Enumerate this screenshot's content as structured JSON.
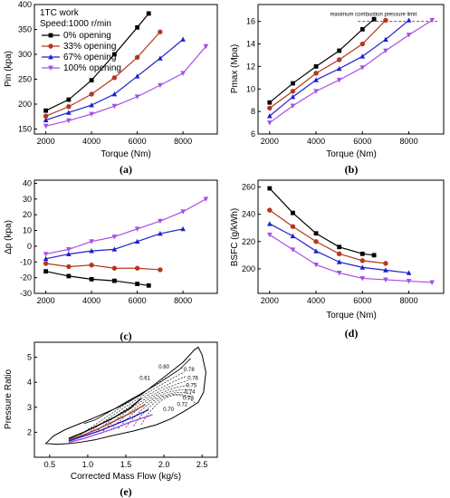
{
  "colors": {
    "s0": "#000000",
    "s33": "#b5371d",
    "s67": "#1f1fcf",
    "s100": "#a64fe8",
    "limit": "#c0392b"
  },
  "panel_a": {
    "caption": "(a)",
    "legend_header": [
      "1TC work",
      "Speed:1000 r/min"
    ],
    "chart_data": {
      "type": "line",
      "xlabel": "Torque (Nm)",
      "ylabel": "Pin (kpa)",
      "xlim": [
        1500,
        9500
      ],
      "ylim": [
        140,
        400
      ],
      "xticks": [
        2000,
        4000,
        6000,
        8000
      ],
      "yticks": [
        150,
        200,
        250,
        300,
        350,
        400
      ],
      "series": [
        {
          "name": "0% opening",
          "x": [
            2000,
            3000,
            4000,
            5000,
            6000,
            6500
          ],
          "y": [
            187,
            209,
            248,
            300,
            354,
            382
          ]
        },
        {
          "name": "33% opening",
          "x": [
            2000,
            3000,
            4000,
            5000,
            6000,
            7000
          ],
          "y": [
            176,
            195,
            220,
            253,
            294,
            345
          ]
        },
        {
          "name": "67% opening",
          "x": [
            2000,
            3000,
            4000,
            5000,
            6000,
            7000,
            8000
          ],
          "y": [
            168,
            183,
            198,
            220,
            256,
            292,
            330
          ]
        },
        {
          "name": "100% opening",
          "x": [
            2000,
            3000,
            4000,
            5000,
            6000,
            7000,
            8000,
            9000
          ],
          "y": [
            156,
            167,
            180,
            196,
            215,
            238,
            262,
            316
          ]
        }
      ]
    }
  },
  "panel_b": {
    "caption": "(b)",
    "annotation": "maximum combustion pressure limit",
    "chart_data": {
      "type": "line",
      "xlabel": "Torque (Nm)",
      "ylabel": "Pmax (Mpa)",
      "xlim": [
        1500,
        9500
      ],
      "ylim": [
        6,
        17.5
      ],
      "xticks": [
        2000,
        4000,
        6000,
        8000
      ],
      "yticks": [
        6,
        8,
        10,
        12,
        14,
        16
      ],
      "limit_y": 16,
      "series": [
        {
          "name": "0% opening",
          "x": [
            2000,
            3000,
            4000,
            5000,
            6000,
            6500
          ],
          "y": [
            8.8,
            10.5,
            12.0,
            13.4,
            15.3,
            16.2
          ]
        },
        {
          "name": "33% opening",
          "x": [
            2000,
            3000,
            4000,
            5000,
            6000,
            7000
          ],
          "y": [
            8.3,
            9.8,
            11.4,
            12.6,
            14.0,
            16.1
          ]
        },
        {
          "name": "67% opening",
          "x": [
            2000,
            3000,
            4000,
            5000,
            6000,
            7000,
            8000
          ],
          "y": [
            7.6,
            9.3,
            10.8,
            11.8,
            12.9,
            14.4,
            16.1
          ]
        },
        {
          "name": "100% opening",
          "x": [
            2000,
            3000,
            4000,
            5000,
            6000,
            7000,
            8000,
            9000
          ],
          "y": [
            7.0,
            8.5,
            9.8,
            10.8,
            11.9,
            13.4,
            14.8,
            16.1
          ]
        }
      ]
    }
  },
  "panel_c": {
    "caption": "(c)",
    "chart_data": {
      "type": "line",
      "xlabel": "Torque (Nm)",
      "ylabel": "Δp (kpa)",
      "xlim": [
        1500,
        9500
      ],
      "ylim": [
        -30,
        42
      ],
      "xticks": [
        2000,
        4000,
        6000,
        8000
      ],
      "yticks": [
        -30,
        -20,
        -10,
        0,
        10,
        20,
        30,
        40
      ],
      "series": [
        {
          "name": "0% opening",
          "x": [
            2000,
            3000,
            4000,
            5000,
            6000,
            6500
          ],
          "y": [
            -16,
            -19,
            -21,
            -22,
            -24,
            -25
          ]
        },
        {
          "name": "33% opening",
          "x": [
            2000,
            3000,
            4000,
            5000,
            6000,
            7000
          ],
          "y": [
            -11,
            -13,
            -12,
            -14,
            -14,
            -15
          ]
        },
        {
          "name": "67% opening",
          "x": [
            2000,
            3000,
            4000,
            5000,
            6000,
            7000,
            8000
          ],
          "y": [
            -8,
            -5,
            -3,
            -2,
            3,
            8,
            11
          ]
        },
        {
          "name": "100% opening",
          "x": [
            2000,
            3000,
            4000,
            5000,
            6000,
            7000,
            8000,
            9000
          ],
          "y": [
            -5,
            -2,
            3,
            6,
            11,
            16,
            22,
            30
          ]
        }
      ]
    }
  },
  "panel_d": {
    "caption": "(d)",
    "chart_data": {
      "type": "line",
      "xlabel": "Torque (Nm)",
      "ylabel": "BSFC (g/kWh)",
      "xlim": [
        1500,
        9500
      ],
      "ylim": [
        182,
        265
      ],
      "xticks": [
        2000,
        4000,
        6000,
        8000
      ],
      "yticks": [
        200,
        220,
        240,
        260
      ],
      "series": [
        {
          "name": "0% opening",
          "x": [
            2000,
            3000,
            4000,
            5000,
            6000,
            6500
          ],
          "y": [
            259,
            241,
            226,
            216,
            211,
            210
          ]
        },
        {
          "name": "33% opening",
          "x": [
            2000,
            3000,
            4000,
            5000,
            6000,
            7000
          ],
          "y": [
            243,
            231,
            220,
            211,
            206,
            204
          ]
        },
        {
          "name": "67% opening",
          "x": [
            2000,
            3000,
            4000,
            5000,
            6000,
            7000,
            8000
          ],
          "y": [
            233,
            224,
            213,
            205,
            201,
            199,
            197
          ]
        },
        {
          "name": "100% opening",
          "x": [
            2000,
            3000,
            4000,
            5000,
            6000,
            7000,
            8000,
            9000
          ],
          "y": [
            225,
            214,
            203,
            197,
            193,
            192,
            191,
            190
          ]
        }
      ]
    }
  },
  "panel_e": {
    "caption": "(e)",
    "chart_data": {
      "type": "line",
      "xlabel": "Corrected Mass Flow (kg/s)",
      "ylabel": "Pressure Ratio",
      "xlim": [
        0.3,
        2.7
      ],
      "ylim": [
        1,
        5.6
      ],
      "xticks": [
        0.5,
        1.0,
        1.5,
        2.0,
        2.5
      ],
      "xticklabels": [
        "0.5",
        "1.0",
        "1.5",
        "2.0",
        "2.5"
      ],
      "yticks": [
        2,
        3,
        4,
        5
      ],
      "efficiency_labels": [
        "0.80",
        "0.78",
        "0.61",
        "0.76",
        "0.75",
        "0.74",
        "0.73",
        "0.72",
        "0.70"
      ],
      "map_outline": {
        "x": [
          0.45,
          0.55,
          0.7,
          0.9,
          1.1,
          1.4,
          1.7,
          2.0,
          2.25,
          2.4,
          2.45,
          2.5,
          2.55,
          2.52,
          2.45,
          2.3,
          2.1,
          1.9,
          1.6,
          1.3,
          1.1,
          0.9,
          0.75,
          0.6,
          0.45
        ],
        "y": [
          1.55,
          1.85,
          2.1,
          2.35,
          2.6,
          3.0,
          3.5,
          4.2,
          4.8,
          5.3,
          5.4,
          5.1,
          4.4,
          3.6,
          3.2,
          2.9,
          2.55,
          2.3,
          2.05,
          1.85,
          1.7,
          1.6,
          1.55,
          1.52,
          1.55
        ]
      },
      "operating_lines": [
        {
          "name": "0% opening",
          "x": [
            0.75,
            0.95,
            1.15,
            1.35,
            1.55,
            1.7
          ],
          "y": [
            1.75,
            2.0,
            2.3,
            2.6,
            2.95,
            3.35
          ]
        },
        {
          "name": "33% opening",
          "x": [
            0.75,
            0.95,
            1.15,
            1.35,
            1.55,
            1.75
          ],
          "y": [
            1.7,
            1.9,
            2.15,
            2.45,
            2.75,
            3.1
          ]
        },
        {
          "name": "67% opening",
          "x": [
            0.75,
            0.95,
            1.15,
            1.35,
            1.55,
            1.8
          ],
          "y": [
            1.65,
            1.85,
            2.05,
            2.3,
            2.55,
            2.9
          ]
        },
        {
          "name": "100% opening",
          "x": [
            0.75,
            0.95,
            1.15,
            1.35,
            1.55,
            1.85
          ],
          "y": [
            1.6,
            1.75,
            1.95,
            2.15,
            2.4,
            2.7
          ]
        }
      ]
    }
  }
}
